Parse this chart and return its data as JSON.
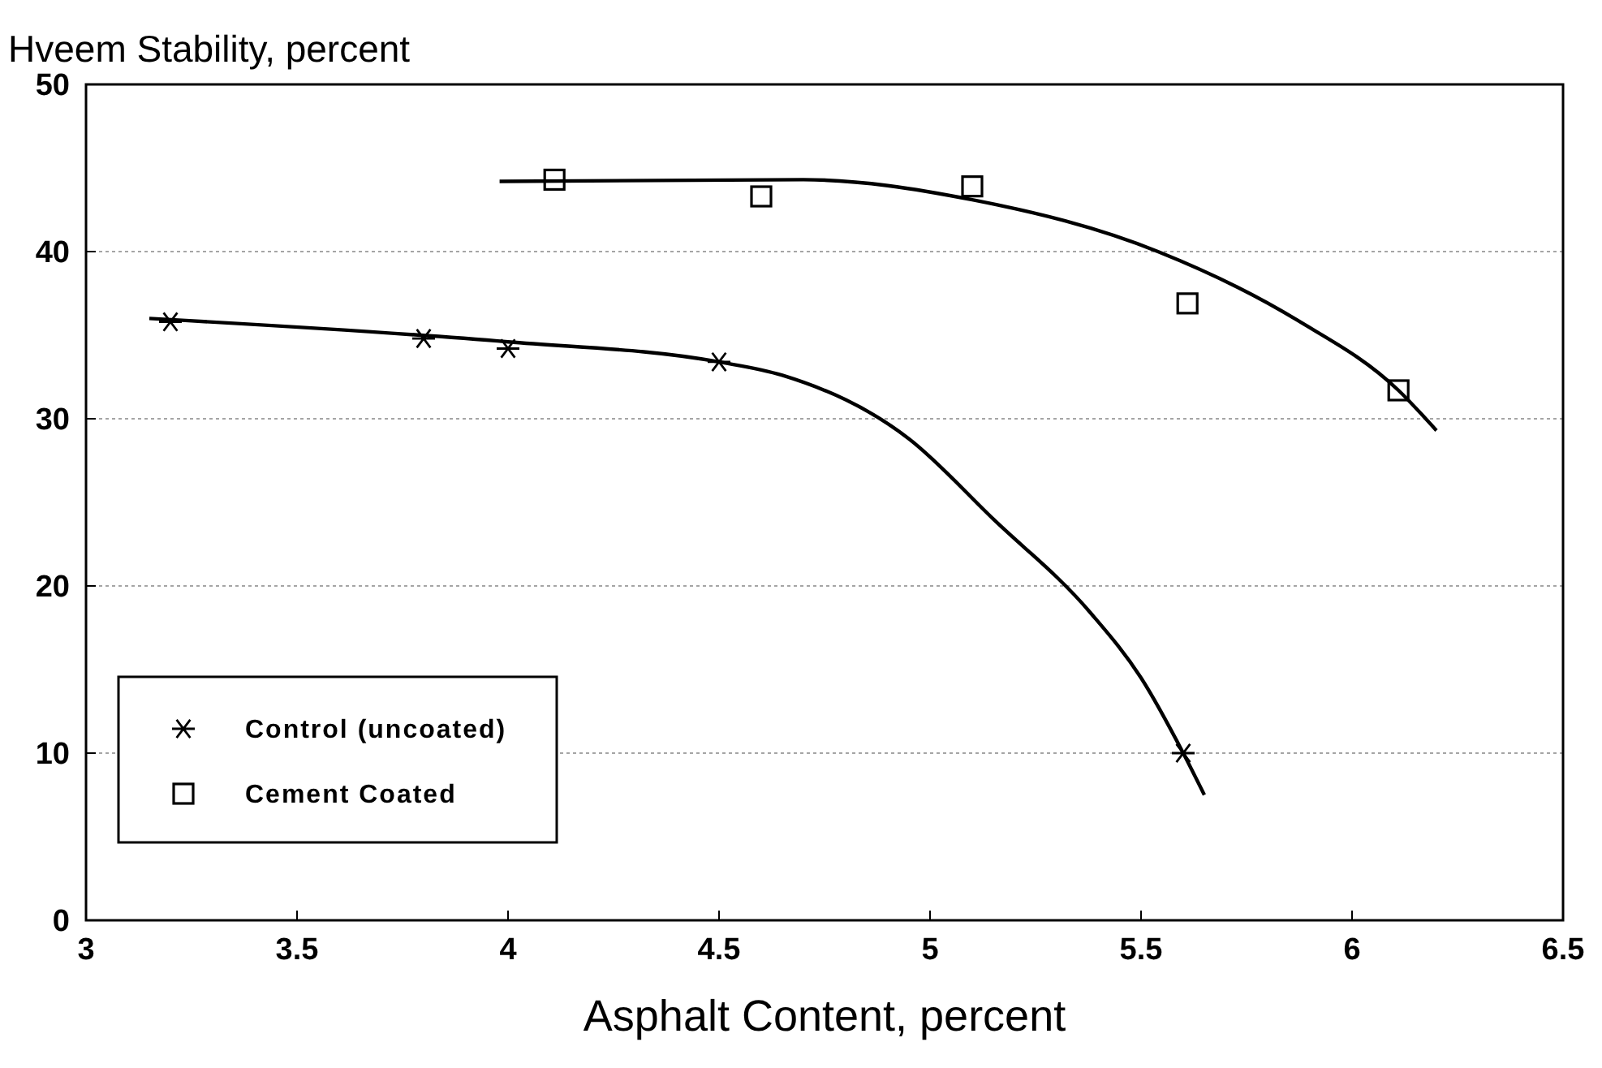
{
  "chart_data": {
    "type": "scatter",
    "ylabel": "Hveem Stability, percent",
    "xlabel": "Asphalt Content, percent",
    "xlim": [
      3,
      6.5
    ],
    "xticks": [
      3,
      3.5,
      4,
      4.5,
      5,
      5.5,
      6,
      6.5
    ],
    "ylim": [
      0,
      50
    ],
    "yticks": [
      0,
      10,
      20,
      30,
      40,
      50
    ],
    "grid": "y",
    "legend": "bottom left",
    "series": [
      {
        "name": "Control (uncoated)",
        "color": "#000000",
        "marker": "cross",
        "x": [
          3.2,
          3.8,
          4.0,
          4.5,
          5.6
        ],
        "values": [
          35.8,
          34.8,
          34.2,
          33.4,
          10
        ]
      },
      {
        "name": "Cement Coated",
        "color": "#000000",
        "marker": "square",
        "x": [
          4.11,
          4.6,
          5.1,
          5.61,
          6.11
        ],
        "values": [
          44.3,
          43.3,
          43.9,
          36.9,
          31.7
        ]
      },
      {
        "type": "line",
        "color": "#000000",
        "marker": "none",
        "x": [
          3.15,
          4.0,
          4.5,
          4.65,
          4.95,
          5.15,
          5.38,
          5.5,
          5.6,
          5.65
        ],
        "values": [
          36,
          34.6,
          33.4,
          32.6,
          28.8,
          24,
          18.4,
          14.5,
          10,
          7.5
        ]
      },
      {
        "type": "line",
        "color": "#000000",
        "marker": "none",
        "x": [
          3.98,
          4.7,
          5.1,
          5.54,
          5.87,
          6.11,
          6.2
        ],
        "values": [
          44.2,
          44.3,
          43.1,
          40,
          35.9,
          31.7,
          29.3
        ]
      }
    ]
  }
}
